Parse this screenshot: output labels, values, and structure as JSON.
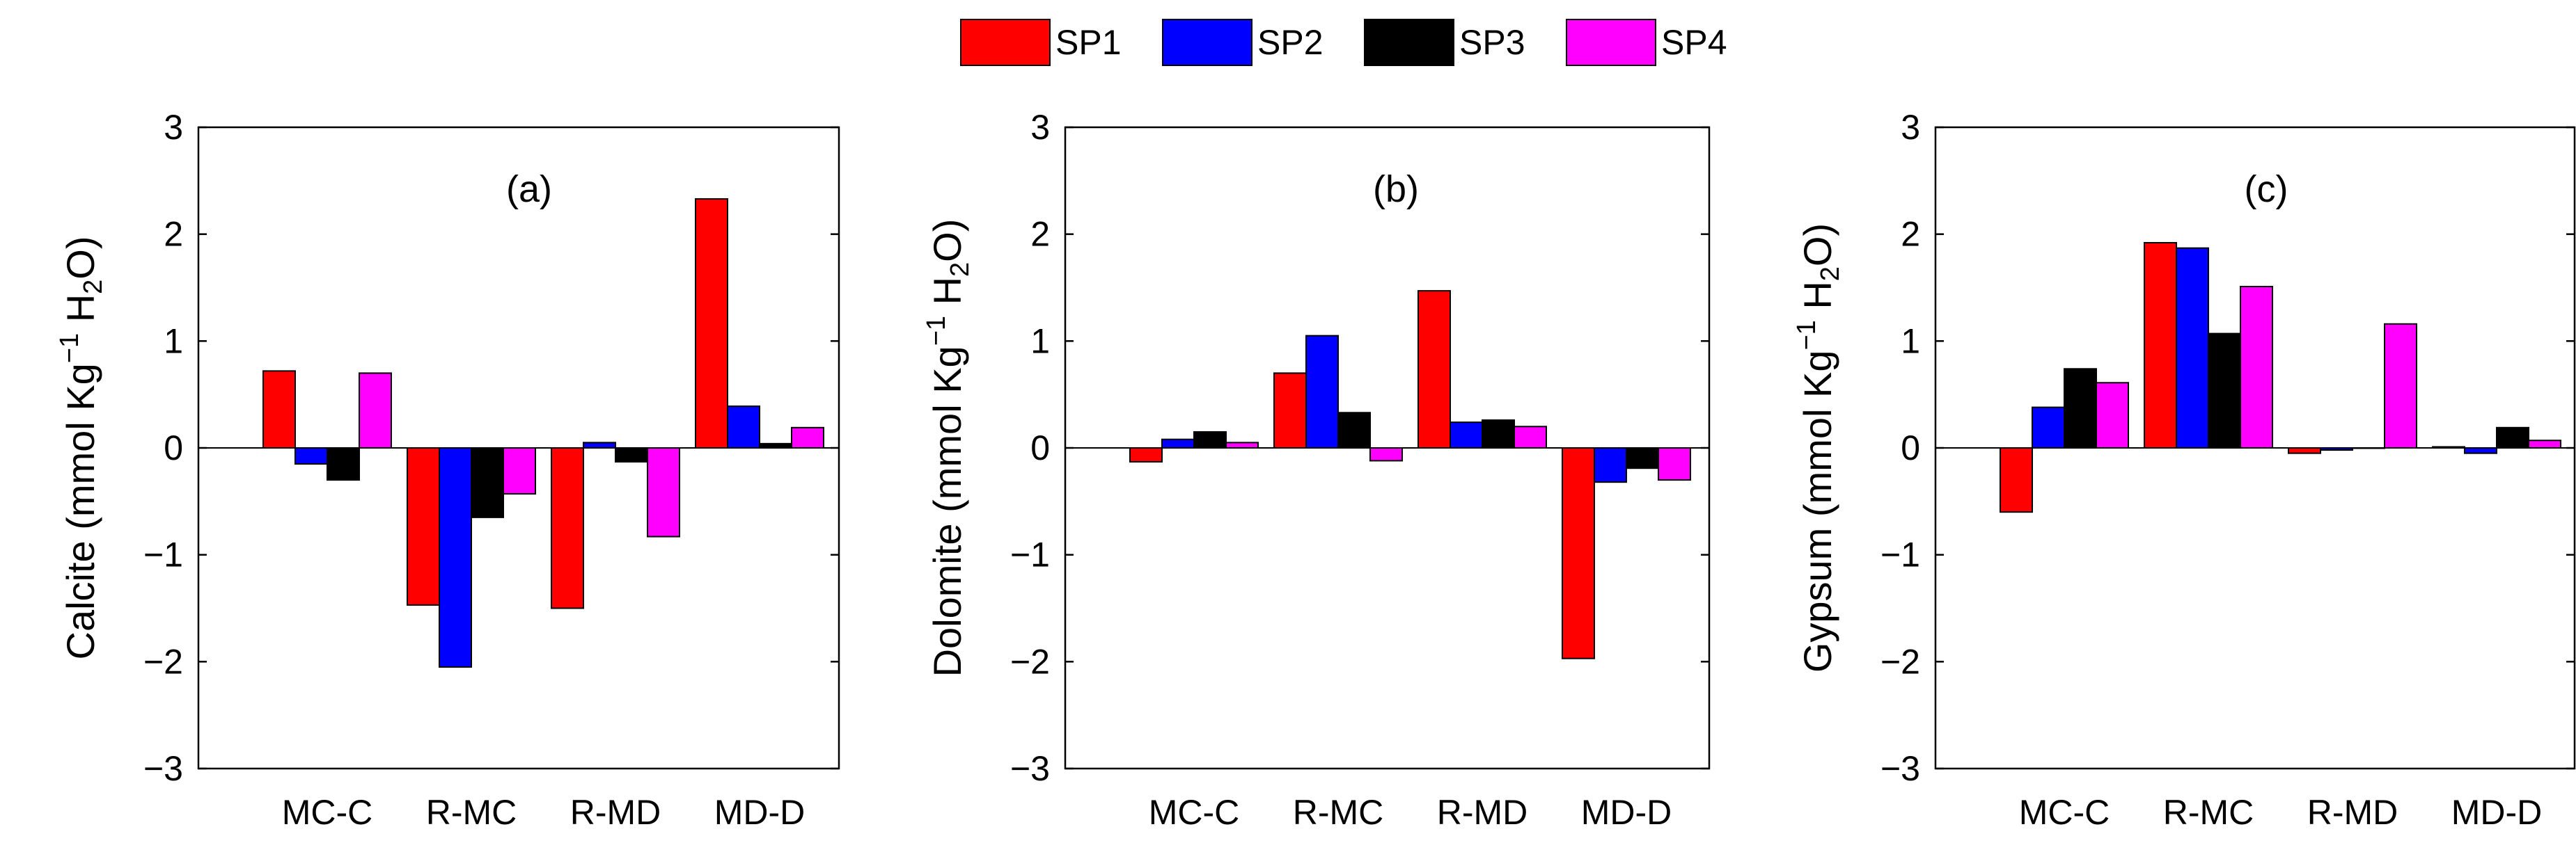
{
  "legend": {
    "position": "top-center",
    "entries": [
      {
        "label": "SP1",
        "color": "#ff0000"
      },
      {
        "label": "SP2",
        "color": "#0000ff"
      },
      {
        "label": "SP3",
        "color": "#000000"
      },
      {
        "label": "SP4",
        "color": "#ff00ff"
      }
    ]
  },
  "chart_data": [
    {
      "type": "bar",
      "panel_label": "(a)",
      "ylabel_main": "Calcite (mmol Kg",
      "ylabel_sup": "−1",
      "ylabel_mid": " H",
      "ylabel_sub": "2",
      "ylabel_end": "O)",
      "ylim": [
        -3,
        3
      ],
      "yticks": [
        3,
        2,
        1,
        0,
        -1,
        -2,
        -3
      ],
      "ytick_labels": [
        "3",
        "2",
        "1",
        "0",
        "−1",
        "−2",
        "−3"
      ],
      "categories": [
        "MC-C",
        "R-MC",
        "R-MD",
        "MD-D"
      ],
      "series": [
        {
          "name": "SP1",
          "values": [
            0.72,
            -1.47,
            -1.5,
            2.33
          ]
        },
        {
          "name": "SP2",
          "values": [
            -0.15,
            -2.05,
            0.05,
            0.39
          ]
        },
        {
          "name": "SP3",
          "values": [
            -0.3,
            -0.65,
            -0.13,
            0.04
          ]
        },
        {
          "name": "SP4",
          "values": [
            0.7,
            -0.43,
            -0.83,
            0.19
          ]
        }
      ]
    },
    {
      "type": "bar",
      "panel_label": "(b)",
      "ylabel_main": "Dolomite (mmol Kg",
      "ylabel_sup": "−1",
      "ylabel_mid": " H",
      "ylabel_sub": "2",
      "ylabel_end": "O)",
      "ylim": [
        -3,
        3
      ],
      "yticks": [
        3,
        2,
        1,
        0,
        -1,
        -2,
        -3
      ],
      "ytick_labels": [
        "3",
        "2",
        "1",
        "0",
        "−1",
        "−2",
        "−3"
      ],
      "categories": [
        "MC-C",
        "R-MC",
        "R-MD",
        "MD-D"
      ],
      "series": [
        {
          "name": "SP1",
          "values": [
            -0.13,
            0.7,
            1.47,
            -1.97
          ]
        },
        {
          "name": "SP2",
          "values": [
            0.08,
            1.05,
            0.24,
            -0.32
          ]
        },
        {
          "name": "SP3",
          "values": [
            0.15,
            0.33,
            0.26,
            -0.19
          ]
        },
        {
          "name": "SP4",
          "values": [
            0.05,
            -0.12,
            0.2,
            -0.3
          ]
        }
      ]
    },
    {
      "type": "bar",
      "panel_label": "(c)",
      "ylabel_main": "Gypsum (mmol Kg",
      "ylabel_sup": "−1",
      "ylabel_mid": " H",
      "ylabel_sub": "2",
      "ylabel_end": "O)",
      "ylim": [
        -3,
        3
      ],
      "yticks": [
        3,
        2,
        1,
        0,
        -1,
        -2,
        -3
      ],
      "ytick_labels": [
        "3",
        "2",
        "1",
        "0",
        "−1",
        "−2",
        "−3"
      ],
      "categories": [
        "MC-C",
        "R-MC",
        "R-MD",
        "MD-D"
      ],
      "series": [
        {
          "name": "SP1",
          "values": [
            -0.6,
            1.92,
            -0.05,
            0.01
          ]
        },
        {
          "name": "SP2",
          "values": [
            0.38,
            1.87,
            -0.02,
            -0.05
          ]
        },
        {
          "name": "SP3",
          "values": [
            0.74,
            1.07,
            0.0,
            0.19
          ]
        },
        {
          "name": "SP4",
          "values": [
            0.61,
            1.51,
            1.16,
            0.07
          ]
        }
      ]
    }
  ]
}
